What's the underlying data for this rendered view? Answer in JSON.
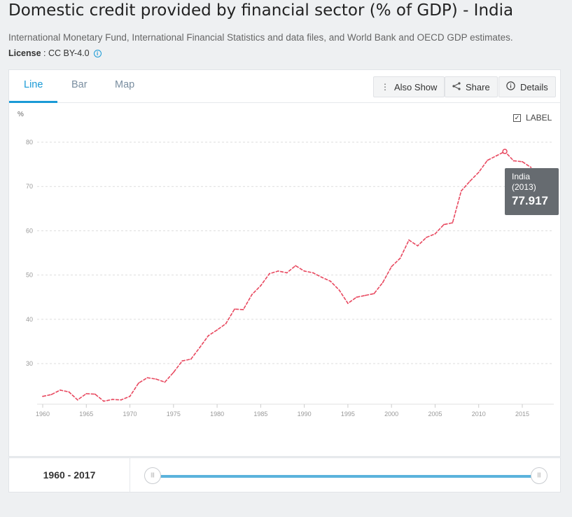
{
  "header": {
    "title": "Domestic credit provided by financial sector (% of GDP) - India",
    "source": "International Monetary Fund, International Financial Statistics and data files, and World Bank and OECD GDP estimates.",
    "license_label": "License",
    "license_sep": " : ",
    "license_value": "CC BY-4.0"
  },
  "tabs": [
    {
      "label": "Line",
      "active": true
    },
    {
      "label": "Bar",
      "active": false
    },
    {
      "label": "Map",
      "active": false
    }
  ],
  "toolbar": {
    "also_show": "Also Show",
    "share": "Share",
    "details": "Details"
  },
  "label_toggle": {
    "text": "LABEL",
    "checked": true
  },
  "tooltip": {
    "name": "India",
    "year": "(2013)",
    "value": "77.917"
  },
  "range": {
    "label": "1960 - 2017",
    "start_year": 1960,
    "end_year": 2017
  },
  "colors": {
    "accent": "#1a9ad6",
    "series": "#e8485f",
    "slider": "#5bb3dc"
  },
  "chart_data": {
    "type": "line",
    "ylabel": "%",
    "ylim": [
      20,
      82
    ],
    "xlim": [
      1960,
      2017
    ],
    "yticks": [
      30,
      40,
      50,
      60,
      70,
      80
    ],
    "xticks": [
      1960,
      1965,
      1970,
      1975,
      1980,
      1985,
      1990,
      1995,
      2000,
      2005,
      2010,
      2015
    ],
    "grid": true,
    "series": [
      {
        "name": "India",
        "x": [
          1960,
          1961,
          1962,
          1963,
          1964,
          1965,
          1966,
          1967,
          1968,
          1969,
          1970,
          1971,
          1972,
          1973,
          1974,
          1975,
          1976,
          1977,
          1978,
          1979,
          1980,
          1981,
          1982,
          1983,
          1984,
          1985,
          1986,
          1987,
          1988,
          1989,
          1990,
          1991,
          1992,
          1993,
          1994,
          1995,
          1996,
          1997,
          1998,
          1999,
          2000,
          2001,
          2002,
          2003,
          2004,
          2005,
          2006,
          2007,
          2008,
          2009,
          2010,
          2011,
          2012,
          2013,
          2014,
          2015,
          2016
        ],
        "values": [
          22.6,
          23.0,
          24.0,
          23.6,
          21.8,
          23.2,
          23.1,
          21.5,
          21.9,
          21.8,
          22.6,
          25.6,
          26.8,
          26.5,
          25.8,
          28.0,
          30.6,
          31.0,
          33.6,
          36.3,
          37.6,
          39.0,
          42.3,
          42.2,
          45.6,
          47.6,
          50.3,
          50.9,
          50.5,
          52.1,
          50.9,
          50.5,
          49.5,
          48.6,
          46.6,
          43.6,
          45.0,
          45.4,
          45.8,
          48.3,
          51.9,
          53.8,
          57.9,
          56.6,
          58.5,
          59.3,
          61.4,
          61.8,
          69.0,
          71.2,
          73.2,
          75.9,
          76.9,
          77.917,
          75.8,
          75.6,
          74.3
        ]
      }
    ]
  }
}
